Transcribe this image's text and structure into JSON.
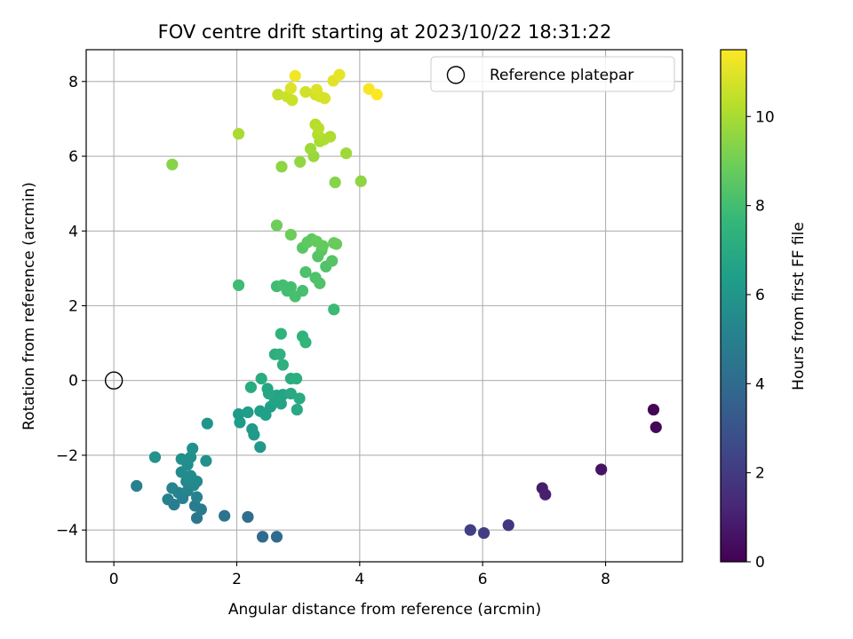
{
  "chart_data": {
    "type": "scatter",
    "title": "FOV centre drift starting at 2023/10/22 18:31:22",
    "xlabel": "Angular distance from reference (arcmin)",
    "ylabel": "Rotation from reference (arcmin)",
    "xlim": [
      -0.45,
      9.25
    ],
    "ylim": [
      -4.85,
      8.85
    ],
    "xticks": [
      0,
      2,
      4,
      6,
      8
    ],
    "yticks": [
      -4,
      -2,
      0,
      2,
      4,
      6,
      8
    ],
    "grid": true,
    "legend": {
      "placement": "top-right",
      "entries": [
        "Reference platepar"
      ]
    },
    "reference_point": {
      "x": 0,
      "y": 0
    },
    "colorbar": {
      "label": "Hours from first FF file",
      "range": [
        0,
        11.5
      ],
      "ticks": [
        0,
        2,
        4,
        6,
        8,
        10
      ],
      "colormap": "viridis"
    },
    "points": [
      {
        "x": 8.78,
        "y": -0.78,
        "h": 0.1
      },
      {
        "x": 8.82,
        "y": -1.25,
        "h": 0.2
      },
      {
        "x": 7.93,
        "y": -2.38,
        "h": 0.6
      },
      {
        "x": 6.97,
        "y": -2.88,
        "h": 0.9
      },
      {
        "x": 7.02,
        "y": -3.05,
        "h": 1.0
      },
      {
        "x": 6.42,
        "y": -3.87,
        "h": 1.8
      },
      {
        "x": 6.02,
        "y": -4.08,
        "h": 2.1
      },
      {
        "x": 5.8,
        "y": -4.0,
        "h": 2.2
      },
      {
        "x": 2.65,
        "y": -4.18,
        "h": 4.0
      },
      {
        "x": 2.42,
        "y": -4.18,
        "h": 4.0
      },
      {
        "x": 2.18,
        "y": -3.65,
        "h": 4.2
      },
      {
        "x": 1.8,
        "y": -3.62,
        "h": 4.4
      },
      {
        "x": 1.35,
        "y": -3.68,
        "h": 4.6
      },
      {
        "x": 1.42,
        "y": -3.45,
        "h": 4.7
      },
      {
        "x": 1.32,
        "y": -3.35,
        "h": 4.8
      },
      {
        "x": 0.98,
        "y": -3.32,
        "h": 4.9
      },
      {
        "x": 0.88,
        "y": -3.18,
        "h": 5.0
      },
      {
        "x": 1.12,
        "y": -3.15,
        "h": 5.0
      },
      {
        "x": 1.35,
        "y": -3.12,
        "h": 5.1
      },
      {
        "x": 1.05,
        "y": -3.0,
        "h": 5.1
      },
      {
        "x": 1.2,
        "y": -2.95,
        "h": 5.2
      },
      {
        "x": 0.95,
        "y": -2.88,
        "h": 5.2
      },
      {
        "x": 1.3,
        "y": -2.8,
        "h": 5.3
      },
      {
        "x": 1.18,
        "y": -2.7,
        "h": 5.4
      },
      {
        "x": 1.35,
        "y": -2.7,
        "h": 5.4
      },
      {
        "x": 1.25,
        "y": -2.55,
        "h": 5.5
      },
      {
        "x": 1.1,
        "y": -2.45,
        "h": 5.5
      },
      {
        "x": 1.2,
        "y": -2.25,
        "h": 5.6
      },
      {
        "x": 1.1,
        "y": -2.1,
        "h": 5.7
      },
      {
        "x": 1.25,
        "y": -2.05,
        "h": 5.7
      },
      {
        "x": 1.5,
        "y": -2.15,
        "h": 5.8
      },
      {
        "x": 1.28,
        "y": -1.82,
        "h": 5.8
      },
      {
        "x": 0.67,
        "y": -2.05,
        "h": 5.9
      },
      {
        "x": 0.37,
        "y": -2.82,
        "h": 5.0
      },
      {
        "x": 1.52,
        "y": -1.15,
        "h": 6.0
      },
      {
        "x": 2.38,
        "y": -1.78,
        "h": 6.1
      },
      {
        "x": 2.28,
        "y": -1.45,
        "h": 6.2
      },
      {
        "x": 2.25,
        "y": -1.3,
        "h": 6.2
      },
      {
        "x": 2.05,
        "y": -1.12,
        "h": 6.3
      },
      {
        "x": 2.03,
        "y": -0.9,
        "h": 6.3
      },
      {
        "x": 2.18,
        "y": -0.85,
        "h": 6.4
      },
      {
        "x": 2.38,
        "y": -0.82,
        "h": 6.4
      },
      {
        "x": 2.47,
        "y": -0.92,
        "h": 6.5
      },
      {
        "x": 2.55,
        "y": -0.7,
        "h": 6.5
      },
      {
        "x": 2.62,
        "y": -0.55,
        "h": 6.6
      },
      {
        "x": 2.72,
        "y": -0.62,
        "h": 6.6
      },
      {
        "x": 2.65,
        "y": -0.4,
        "h": 6.7
      },
      {
        "x": 2.75,
        "y": -0.38,
        "h": 6.7
      },
      {
        "x": 2.52,
        "y": -0.35,
        "h": 6.8
      },
      {
        "x": 2.5,
        "y": -0.22,
        "h": 6.8
      },
      {
        "x": 2.88,
        "y": -0.35,
        "h": 6.9
      },
      {
        "x": 2.98,
        "y": -0.78,
        "h": 6.9
      },
      {
        "x": 3.02,
        "y": -0.48,
        "h": 7.0
      },
      {
        "x": 2.23,
        "y": -0.18,
        "h": 7.0
      },
      {
        "x": 2.4,
        "y": 0.05,
        "h": 7.1
      },
      {
        "x": 2.88,
        "y": 0.05,
        "h": 7.1
      },
      {
        "x": 2.97,
        "y": 0.05,
        "h": 7.2
      },
      {
        "x": 2.62,
        "y": 0.7,
        "h": 7.2
      },
      {
        "x": 2.7,
        "y": 0.7,
        "h": 7.3
      },
      {
        "x": 2.75,
        "y": 0.42,
        "h": 7.3
      },
      {
        "x": 2.72,
        "y": 1.25,
        "h": 7.4
      },
      {
        "x": 3.07,
        "y": 1.18,
        "h": 7.4
      },
      {
        "x": 3.12,
        "y": 1.02,
        "h": 7.5
      },
      {
        "x": 3.58,
        "y": 1.9,
        "h": 7.8
      },
      {
        "x": 2.03,
        "y": 2.55,
        "h": 7.9
      },
      {
        "x": 2.65,
        "y": 2.52,
        "h": 7.9
      },
      {
        "x": 2.75,
        "y": 2.55,
        "h": 8.0
      },
      {
        "x": 2.88,
        "y": 2.5,
        "h": 8.0
      },
      {
        "x": 2.82,
        "y": 2.4,
        "h": 8.0
      },
      {
        "x": 2.95,
        "y": 2.25,
        "h": 8.1
      },
      {
        "x": 3.07,
        "y": 2.4,
        "h": 8.1
      },
      {
        "x": 3.12,
        "y": 2.9,
        "h": 8.2
      },
      {
        "x": 3.28,
        "y": 2.75,
        "h": 8.2
      },
      {
        "x": 3.35,
        "y": 2.6,
        "h": 8.3
      },
      {
        "x": 3.45,
        "y": 3.05,
        "h": 8.3
      },
      {
        "x": 3.55,
        "y": 3.2,
        "h": 8.4
      },
      {
        "x": 3.32,
        "y": 3.32,
        "h": 8.4
      },
      {
        "x": 3.38,
        "y": 3.48,
        "h": 8.5
      },
      {
        "x": 3.07,
        "y": 3.55,
        "h": 8.5
      },
      {
        "x": 3.15,
        "y": 3.7,
        "h": 8.6
      },
      {
        "x": 3.22,
        "y": 3.78,
        "h": 8.6
      },
      {
        "x": 3.3,
        "y": 3.72,
        "h": 8.7
      },
      {
        "x": 3.4,
        "y": 3.6,
        "h": 8.7
      },
      {
        "x": 3.58,
        "y": 3.68,
        "h": 8.8
      },
      {
        "x": 3.62,
        "y": 3.65,
        "h": 8.8
      },
      {
        "x": 2.88,
        "y": 3.9,
        "h": 8.9
      },
      {
        "x": 2.65,
        "y": 4.15,
        "h": 8.9
      },
      {
        "x": 0.95,
        "y": 5.78,
        "h": 9.4
      },
      {
        "x": 2.73,
        "y": 5.72,
        "h": 9.5
      },
      {
        "x": 3.03,
        "y": 5.85,
        "h": 9.6
      },
      {
        "x": 3.6,
        "y": 5.3,
        "h": 9.4
      },
      {
        "x": 4.02,
        "y": 5.33,
        "h": 9.5
      },
      {
        "x": 3.25,
        "y": 6.0,
        "h": 9.7
      },
      {
        "x": 3.2,
        "y": 6.2,
        "h": 9.8
      },
      {
        "x": 3.78,
        "y": 6.08,
        "h": 9.8
      },
      {
        "x": 2.03,
        "y": 6.6,
        "h": 10.0
      },
      {
        "x": 3.35,
        "y": 6.4,
        "h": 10.0
      },
      {
        "x": 3.42,
        "y": 6.45,
        "h": 10.1
      },
      {
        "x": 3.52,
        "y": 6.52,
        "h": 10.1
      },
      {
        "x": 3.32,
        "y": 6.58,
        "h": 10.2
      },
      {
        "x": 3.28,
        "y": 6.85,
        "h": 10.2
      },
      {
        "x": 3.33,
        "y": 6.75,
        "h": 10.3
      },
      {
        "x": 2.67,
        "y": 7.65,
        "h": 10.5
      },
      {
        "x": 2.82,
        "y": 7.6,
        "h": 10.6
      },
      {
        "x": 2.9,
        "y": 7.5,
        "h": 10.6
      },
      {
        "x": 3.12,
        "y": 7.72,
        "h": 10.7
      },
      {
        "x": 3.28,
        "y": 7.65,
        "h": 10.7
      },
      {
        "x": 3.35,
        "y": 7.6,
        "h": 10.8
      },
      {
        "x": 3.43,
        "y": 7.55,
        "h": 10.8
      },
      {
        "x": 3.3,
        "y": 7.78,
        "h": 10.9
      },
      {
        "x": 2.88,
        "y": 7.82,
        "h": 10.9
      },
      {
        "x": 3.57,
        "y": 8.02,
        "h": 11.0
      },
      {
        "x": 3.67,
        "y": 8.18,
        "h": 11.1
      },
      {
        "x": 2.95,
        "y": 8.15,
        "h": 11.3
      },
      {
        "x": 4.15,
        "y": 7.8,
        "h": 11.4
      },
      {
        "x": 4.28,
        "y": 7.65,
        "h": 11.5
      }
    ]
  }
}
